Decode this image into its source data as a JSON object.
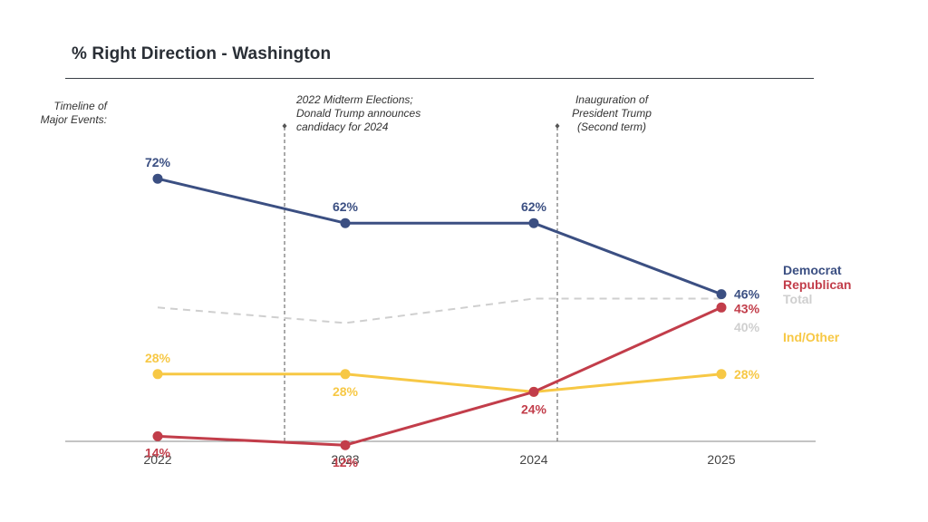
{
  "title": "% Right Direction - Washington",
  "timeline_label": "Timeline of Major Events:",
  "events": [
    {
      "text": "2022 Midterm Elections; Donald Trump announces candidacy for 2024",
      "between": [
        "2022",
        "2023"
      ]
    },
    {
      "text": "Inauguration of President Trump (Second term)",
      "between": [
        "2024",
        "2025"
      ]
    }
  ],
  "chart_data": {
    "type": "line",
    "title": "% Right Direction - Washington",
    "xlabel": "",
    "ylabel": "",
    "categories": [
      "2022",
      "2023",
      "2024",
      "2025"
    ],
    "ylim": [
      0,
      100
    ],
    "grid": false,
    "legend_placement": "right",
    "series": [
      {
        "name": "Democrat",
        "color": "#3b4f82",
        "values": [
          72,
          62,
          62,
          46
        ],
        "labels": [
          "72%",
          "62%",
          "62%",
          "46%"
        ]
      },
      {
        "name": "Republican",
        "color": "#c23d4a",
        "values": [
          14,
          12,
          24,
          43
        ],
        "labels": [
          "14%",
          "12%",
          "24%",
          "43%"
        ]
      },
      {
        "name": "Total",
        "color": "#cfcfcf",
        "style": "dashed",
        "values": [
          null,
          null,
          null,
          40
        ],
        "trend": [
          43,
          39.5,
          45,
          45
        ],
        "labels": [
          "",
          "",
          "",
          "40%"
        ]
      },
      {
        "name": "Ind/Other",
        "color": "#f7c845",
        "values": [
          28,
          28,
          24,
          28
        ],
        "labels": [
          "28%",
          "28%",
          "",
          "28%"
        ]
      }
    ]
  }
}
